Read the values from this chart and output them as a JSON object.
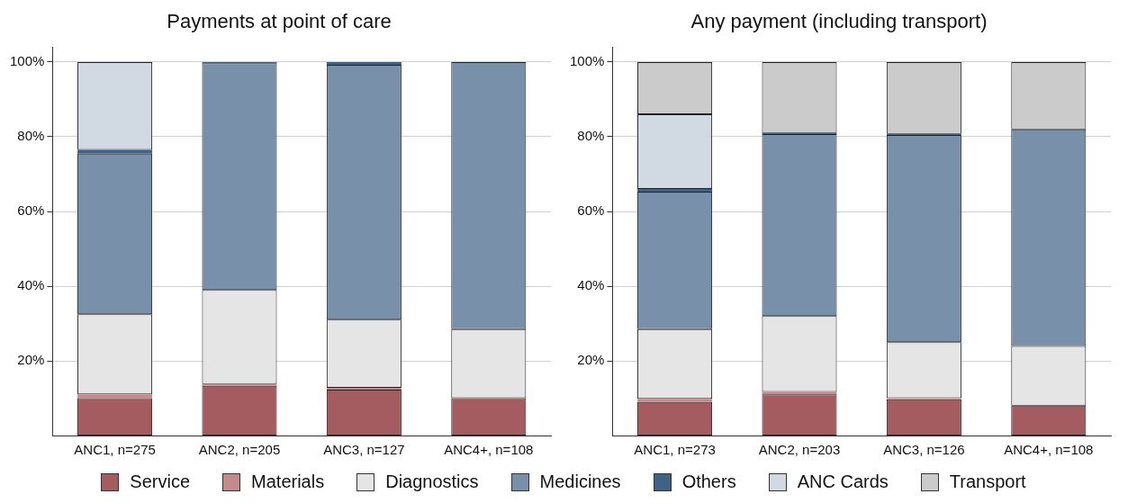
{
  "chart_data": [
    {
      "type": "bar",
      "title": "Payments at point of care",
      "stacked": true,
      "categories": [
        "ANC1, n=275",
        "ANC2, n=205",
        "ANC3, n=127",
        "ANC4+, n=108"
      ],
      "ylim": [
        0,
        104
      ],
      "yticks": [
        {
          "value": 20,
          "label": "20%"
        },
        {
          "value": 40,
          "label": "40%"
        },
        {
          "value": 60,
          "label": "60%"
        },
        {
          "value": 80,
          "label": "80%"
        },
        {
          "value": 100,
          "label": "100%"
        }
      ],
      "grid": "y",
      "legend": "bottom",
      "series": [
        {
          "name": "Service",
          "color": "#a45c61",
          "values": [
            10,
            13.3,
            12.3,
            10
          ]
        },
        {
          "name": "Materials",
          "color": "#c48a8c",
          "values": [
            1,
            0.5,
            0.5,
            0
          ]
        },
        {
          "name": "Diagnostics",
          "color": "#e5e5e5",
          "values": [
            21.5,
            25.2,
            18.2,
            18.5
          ]
        },
        {
          "name": "Medicines",
          "color": "#7890aa",
          "values": [
            43,
            60.7,
            68.3,
            71.5
          ]
        },
        {
          "name": "Others",
          "color": "#3f6286",
          "values": [
            1,
            0.3,
            0.7,
            0
          ]
        },
        {
          "name": "ANC Cards",
          "color": "#d1d9e2",
          "values": [
            23.5,
            0,
            0,
            0
          ]
        }
      ]
    },
    {
      "type": "bar",
      "title": "Any payment (including transport)",
      "stacked": true,
      "categories": [
        "ANC1, n=273",
        "ANC2, n=203",
        "ANC3, n=126",
        "ANC4+, n=108"
      ],
      "ylim": [
        0,
        104
      ],
      "yticks": [
        {
          "value": 20,
          "label": "20%"
        },
        {
          "value": 40,
          "label": "40%"
        },
        {
          "value": 60,
          "label": "60%"
        },
        {
          "value": 80,
          "label": "80%"
        },
        {
          "value": 100,
          "label": "100%"
        }
      ],
      "grid": "y",
      "legend": "bottom",
      "series": [
        {
          "name": "Service",
          "color": "#a45c61",
          "values": [
            9,
            11,
            9.7,
            8
          ]
        },
        {
          "name": "Materials",
          "color": "#c48a8c",
          "values": [
            0.8,
            0.7,
            0.3,
            0
          ]
        },
        {
          "name": "Diagnostics",
          "color": "#e5e5e5",
          "values": [
            18.7,
            20.3,
            15,
            16
          ]
        },
        {
          "name": "Medicines",
          "color": "#7890aa",
          "values": [
            36.8,
            48.7,
            55.5,
            58
          ]
        },
        {
          "name": "Others",
          "color": "#3f6286",
          "values": [
            0.7,
            0.3,
            0.3,
            0
          ]
        },
        {
          "name": "ANC Cards",
          "color": "#d1d9e2",
          "values": [
            20,
            0,
            0,
            0
          ]
        },
        {
          "name": "Transport",
          "color": "#cbcbcb",
          "values": [
            14,
            19,
            19.2,
            18
          ]
        }
      ]
    }
  ]
}
